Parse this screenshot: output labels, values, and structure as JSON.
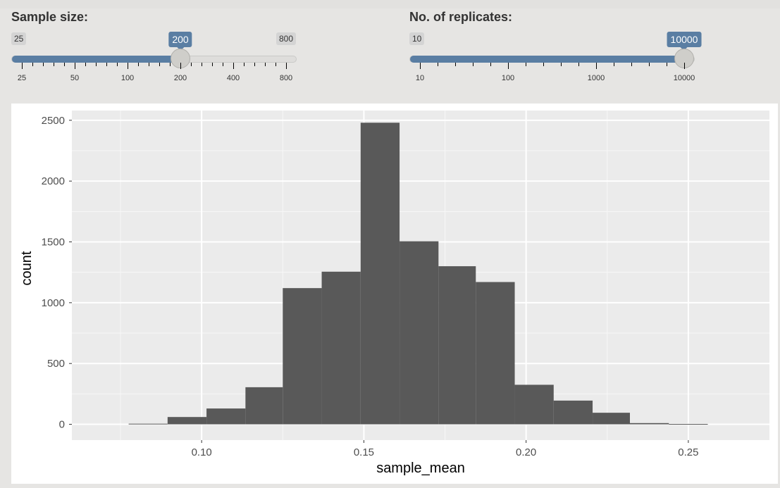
{
  "sample_size": {
    "label": "Sample size:",
    "min_label": "25",
    "max_label": "800",
    "value_label": "200",
    "tick_labels": [
      "25",
      "50",
      "100",
      "200",
      "400",
      "800"
    ]
  },
  "replicates": {
    "label": "No. of replicates:",
    "min_label": "10",
    "max_label": "10000",
    "value_label": "10000",
    "tick_labels": [
      "10",
      "100",
      "1000",
      "10000"
    ]
  },
  "colors": {
    "slider_accent": "#5a7ea3",
    "panel_bg": "#ebebeb",
    "bar_fill": "#595959"
  },
  "chart_data": {
    "type": "bar",
    "title": "",
    "xlabel": "sample_mean",
    "ylabel": "count",
    "xlim": [
      0.06,
      0.275
    ],
    "ylim": [
      -130,
      2580
    ],
    "x_ticks": [
      0.1,
      0.15,
      0.2,
      0.25
    ],
    "x_tick_labels": [
      "0.10",
      "0.15",
      "0.20",
      "0.25"
    ],
    "y_ticks": [
      0,
      500,
      1000,
      1500,
      2000,
      2500
    ],
    "y_tick_labels": [
      "0",
      "500",
      "1000",
      "1500",
      "2000",
      "2500"
    ],
    "grid": true,
    "bins": [
      {
        "x0": 0.0775,
        "x1": 0.0895,
        "count": 5
      },
      {
        "x0": 0.0895,
        "x1": 0.1015,
        "count": 60
      },
      {
        "x0": 0.1015,
        "x1": 0.1135,
        "count": 130
      },
      {
        "x0": 0.1135,
        "x1": 0.125,
        "count": 305
      },
      {
        "x0": 0.125,
        "x1": 0.137,
        "count": 1120
      },
      {
        "x0": 0.137,
        "x1": 0.149,
        "count": 1255
      },
      {
        "x0": 0.149,
        "x1": 0.161,
        "count": 2480
      },
      {
        "x0": 0.161,
        "x1": 0.173,
        "count": 1505
      },
      {
        "x0": 0.173,
        "x1": 0.1845,
        "count": 1300
      },
      {
        "x0": 0.1845,
        "x1": 0.1965,
        "count": 1170
      },
      {
        "x0": 0.1965,
        "x1": 0.2085,
        "count": 325
      },
      {
        "x0": 0.2085,
        "x1": 0.2205,
        "count": 195
      },
      {
        "x0": 0.2205,
        "x1": 0.232,
        "count": 95
      },
      {
        "x0": 0.232,
        "x1": 0.244,
        "count": 10
      },
      {
        "x0": 0.244,
        "x1": 0.256,
        "count": 3
      }
    ]
  }
}
